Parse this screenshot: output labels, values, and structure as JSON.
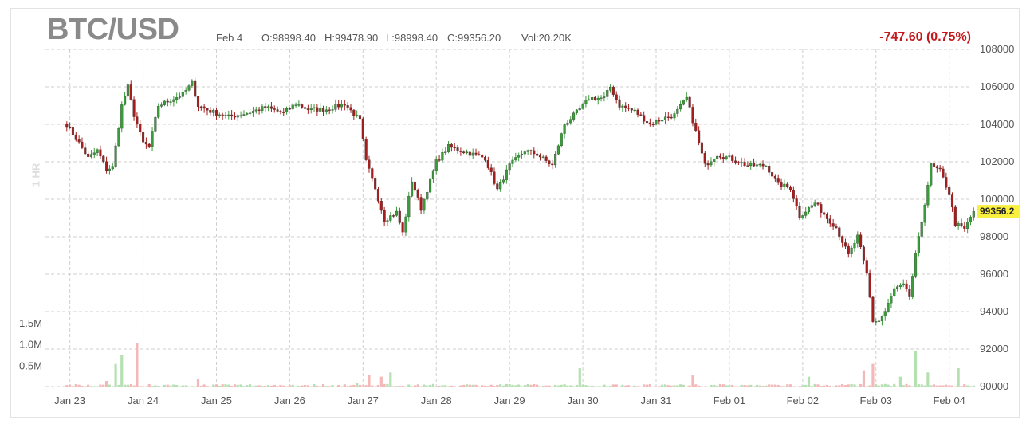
{
  "header": {
    "symbol": "BTC/USD",
    "date": "Feb 4",
    "open": "O:98998.40",
    "high": "H:99478.90",
    "low": "L:98998.40",
    "close": "C:99356.20",
    "volume": "Vol:20.20K",
    "change": "-747.60 (0.75%)",
    "interval": "1 HR"
  },
  "colors": {
    "up": "#3a9b3a",
    "down": "#a51d1d",
    "vol_up": "#b6e0b2",
    "vol_down": "#f4b8b8",
    "change": "#c4191c",
    "last_price_badge": "#f8ef3e"
  },
  "chart_data": {
    "type": "candlestick",
    "title": "BTC/USD",
    "interval": "1 HR",
    "ylim": [
      90000,
      108000
    ],
    "y_ticks": [
      "108000",
      "106000",
      "104000",
      "102000",
      "100000",
      "98000",
      "96000",
      "94000",
      "92000",
      "90000"
    ],
    "volume_ticks": [
      "1.5M",
      "1.0M",
      "0.5M"
    ],
    "x_ticks": [
      "Jan 23",
      "Jan 24",
      "Jan 25",
      "Jan 26",
      "Jan 27",
      "Jan 28",
      "Jan 29",
      "Jan 30",
      "Jan 31",
      "Feb 01",
      "Feb 02",
      "Feb 03",
      "Feb 04"
    ],
    "last_price": "99356.2",
    "last_price_value": 99356.2,
    "close_path": [
      [
        "2025-01-22T23:00",
        104000
      ],
      [
        "2025-01-23T03:00",
        103000
      ],
      [
        "2025-01-23T06:00",
        102200
      ],
      [
        "2025-01-23T09:00",
        102600
      ],
      [
        "2025-01-23T12:00",
        101600
      ],
      [
        "2025-01-23T14:00",
        101700
      ],
      [
        "2025-01-23T17:00",
        105000
      ],
      [
        "2025-01-23T19:00",
        106000
      ],
      [
        "2025-01-23T21:00",
        104500
      ],
      [
        "2025-01-24T00:00",
        103000
      ],
      [
        "2025-01-24T02:00",
        102800
      ],
      [
        "2025-01-24T05:00",
        105000
      ],
      [
        "2025-01-24T09:00",
        105300
      ],
      [
        "2025-01-24T13:00",
        105600
      ],
      [
        "2025-01-24T16:00",
        106200
      ],
      [
        "2025-01-24T18:00",
        105000
      ],
      [
        "2025-01-24T22:00",
        104700
      ],
      [
        "2025-01-25T04:00",
        104400
      ],
      [
        "2025-01-25T10:00",
        104600
      ],
      [
        "2025-01-25T16:00",
        104900
      ],
      [
        "2025-01-25T22:00",
        104600
      ],
      [
        "2025-01-26T02:00",
        105100
      ],
      [
        "2025-01-26T06:00",
        104800
      ],
      [
        "2025-01-26T12:00",
        104800
      ],
      [
        "2025-01-26T18:00",
        105100
      ],
      [
        "2025-01-26T23:00",
        104200
      ],
      [
        "2025-01-27T01:00",
        102000
      ],
      [
        "2025-01-27T04:00",
        100600
      ],
      [
        "2025-01-27T07:00",
        98900
      ],
      [
        "2025-01-27T11:00",
        99300
      ],
      [
        "2025-01-27T13:00",
        98200
      ],
      [
        "2025-01-27T16:00",
        101000
      ],
      [
        "2025-01-27T19:00",
        99500
      ],
      [
        "2025-01-27T21:00",
        100500
      ],
      [
        "2025-01-28T00:00",
        102000
      ],
      [
        "2025-01-28T04:00",
        102800
      ],
      [
        "2025-01-28T10:00",
        102500
      ],
      [
        "2025-01-28T16:00",
        102200
      ],
      [
        "2025-01-28T20:00",
        100500
      ],
      [
        "2025-01-29T00:00",
        101800
      ],
      [
        "2025-01-29T05:00",
        102600
      ],
      [
        "2025-01-29T09:00",
        102400
      ],
      [
        "2025-01-29T14:00",
        101800
      ],
      [
        "2025-01-29T18:00",
        104000
      ],
      [
        "2025-01-29T23:00",
        104800
      ],
      [
        "2025-01-30T02:00",
        105400
      ],
      [
        "2025-01-30T07:00",
        105400
      ],
      [
        "2025-01-30T09:00",
        106000
      ],
      [
        "2025-01-30T12:00",
        105000
      ],
      [
        "2025-01-30T17:00",
        104700
      ],
      [
        "2025-01-30T22:00",
        104000
      ],
      [
        "2025-01-31T02:00",
        104300
      ],
      [
        "2025-01-31T06:00",
        104500
      ],
      [
        "2025-01-31T10:00",
        105400
      ],
      [
        "2025-01-31T13:00",
        103600
      ],
      [
        "2025-01-31T16:00",
        101800
      ],
      [
        "2025-01-31T20:00",
        102400
      ],
      [
        "2025-02-01T00:00",
        102200
      ],
      [
        "2025-02-01T06:00",
        101800
      ],
      [
        "2025-02-01T12:00",
        101800
      ],
      [
        "2025-02-01T16:00",
        100800
      ],
      [
        "2025-02-01T20:00",
        100600
      ],
      [
        "2025-02-01T23:00",
        99100
      ],
      [
        "2025-02-02T04:00",
        99800
      ],
      [
        "2025-02-02T08:00",
        99000
      ],
      [
        "2025-02-02T11:00",
        98500
      ],
      [
        "2025-02-02T15:00",
        97000
      ],
      [
        "2025-02-02T18:00",
        98000
      ],
      [
        "2025-02-02T21:00",
        96000
      ],
      [
        "2025-02-02T23:00",
        93500
      ],
      [
        "2025-02-03T01:00",
        93500
      ],
      [
        "2025-02-03T03:00",
        94000
      ],
      [
        "2025-02-03T06:00",
        95200
      ],
      [
        "2025-02-03T09:00",
        95400
      ],
      [
        "2025-02-03T11:00",
        94800
      ],
      [
        "2025-02-03T13:00",
        97000
      ],
      [
        "2025-02-03T15:00",
        98800
      ],
      [
        "2025-02-03T18:00",
        101800
      ],
      [
        "2025-02-03T21:00",
        101500
      ],
      [
        "2025-02-04T00:00",
        100300
      ],
      [
        "2025-02-04T02:00",
        98700
      ],
      [
        "2025-02-04T05:00",
        98400
      ],
      [
        "2025-02-04T08:00",
        99356.2
      ]
    ],
    "volume_spikes_M": [
      [
        "2025-01-23T12:00",
        0.15
      ],
      [
        "2025-01-23T15:00",
        0.55
      ],
      [
        "2025-01-23T17:00",
        0.75
      ],
      [
        "2025-01-23T22:00",
        1.05
      ],
      [
        "2025-01-24T18:00",
        0.2
      ],
      [
        "2025-01-26T22:00",
        0.1
      ],
      [
        "2025-01-27T02:00",
        0.3
      ],
      [
        "2025-01-27T06:00",
        0.25
      ],
      [
        "2025-01-27T09:00",
        0.35
      ],
      [
        "2025-01-29T23:00",
        0.45
      ],
      [
        "2025-01-31T12:00",
        0.28
      ],
      [
        "2025-02-02T02:00",
        0.25
      ],
      [
        "2025-02-02T20:00",
        0.4
      ],
      [
        "2025-02-02T23:00",
        0.55
      ],
      [
        "2025-02-03T08:00",
        0.25
      ],
      [
        "2025-02-03T13:00",
        0.85
      ],
      [
        "2025-02-03T17:00",
        0.35
      ],
      [
        "2025-02-04T03:00",
        0.45
      ]
    ]
  }
}
